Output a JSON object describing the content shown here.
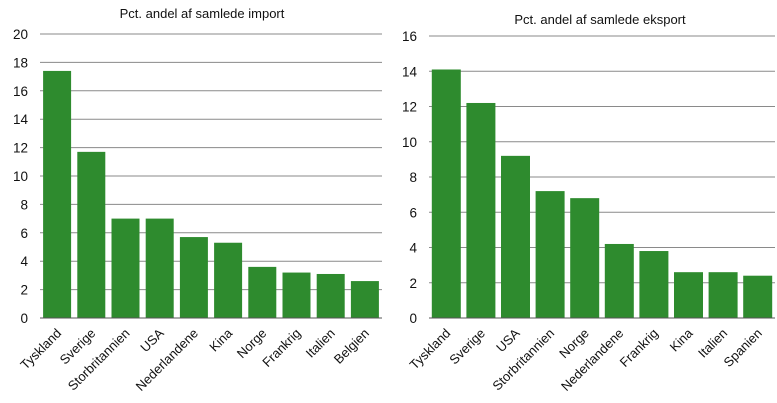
{
  "chart_data": [
    {
      "type": "bar",
      "title": "Pct. andel af samlede import",
      "categories": [
        "Tyskland",
        "Sverige",
        "Storbritannien",
        "USA",
        "Nederlandene",
        "Kina",
        "Norge",
        "Frankrig",
        "Italien",
        "Belgien"
      ],
      "values": [
        17.4,
        11.7,
        7.0,
        7.0,
        5.7,
        5.3,
        3.6,
        3.2,
        3.1,
        2.6
      ],
      "ylim": [
        0,
        20
      ],
      "yticks": [
        0,
        2,
        4,
        6,
        8,
        10,
        12,
        14,
        16,
        18,
        20
      ],
      "grid": true,
      "color": "#2e8b2e"
    },
    {
      "type": "bar",
      "title": "Pct. andel af samlede eksport",
      "categories": [
        "Tyskland",
        "Sverige",
        "USA",
        "Storbritannien",
        "Norge",
        "Nederlandene",
        "Frankrig",
        "Kina",
        "Italien",
        "Spanien"
      ],
      "values": [
        14.1,
        12.2,
        9.2,
        7.2,
        6.8,
        4.2,
        3.8,
        2.6,
        2.6,
        2.4
      ],
      "ylim": [
        0,
        16
      ],
      "yticks": [
        0,
        2,
        4,
        6,
        8,
        10,
        12,
        14,
        16
      ],
      "grid": true,
      "color": "#2e8b2e"
    }
  ]
}
